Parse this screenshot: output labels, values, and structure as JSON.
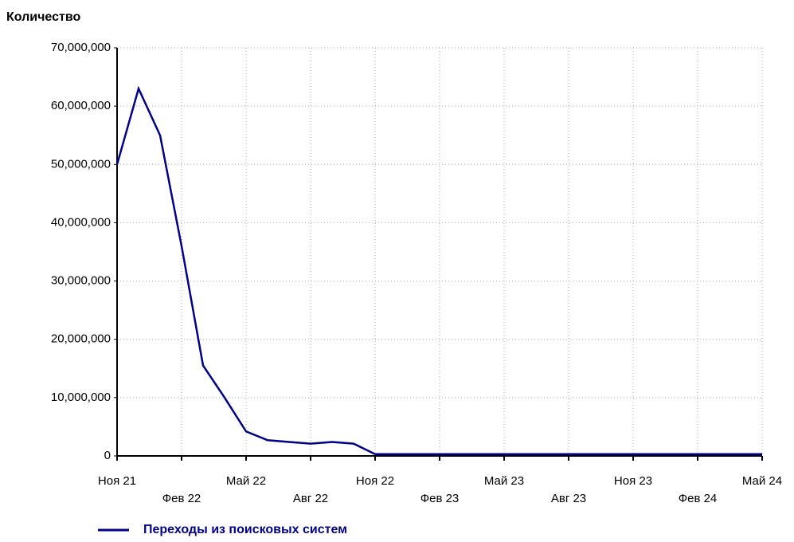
{
  "chart_data": {
    "type": "line",
    "y_axis_label": "Количество",
    "categories": [
      "Ноя 21",
      null,
      null,
      "Фев 22",
      null,
      null,
      "Май 22",
      null,
      null,
      "Авг 22",
      null,
      null,
      "Ноя 22",
      null,
      null,
      "Фев 23",
      null,
      null,
      "Май 23",
      null,
      null,
      "Авг 23",
      null,
      null,
      "Ноя 23",
      null,
      null,
      "Фев 24",
      null,
      null,
      "Май 24"
    ],
    "series": [
      {
        "name": "Переходы из поисковых систем",
        "color": "#000088",
        "values": [
          50000000,
          63000000,
          55000000,
          36000000,
          15500000,
          10000000,
          4200000,
          2700000,
          2400000,
          2100000,
          2400000,
          2100000,
          300000,
          300000,
          300000,
          300000,
          300000,
          300000,
          300000,
          300000,
          300000,
          300000,
          300000,
          300000,
          300000,
          300000,
          300000,
          300000,
          300000,
          300000,
          300000
        ]
      }
    ],
    "ylim": [
      0,
      70000000
    ],
    "yticks": [
      0,
      {
        "value": 10000000,
        "label": "10,000,000"
      },
      {
        "value": 20000000,
        "label": "20,000,000"
      },
      {
        "value": 30000000,
        "label": "30,000,000"
      },
      {
        "value": 40000000,
        "label": "40,000,000"
      },
      {
        "value": 50000000,
        "label": "50,000,000"
      },
      {
        "value": 60000000,
        "label": "60,000,000"
      },
      {
        "value": 70000000,
        "label": "70,000,000"
      }
    ],
    "grid": true
  }
}
